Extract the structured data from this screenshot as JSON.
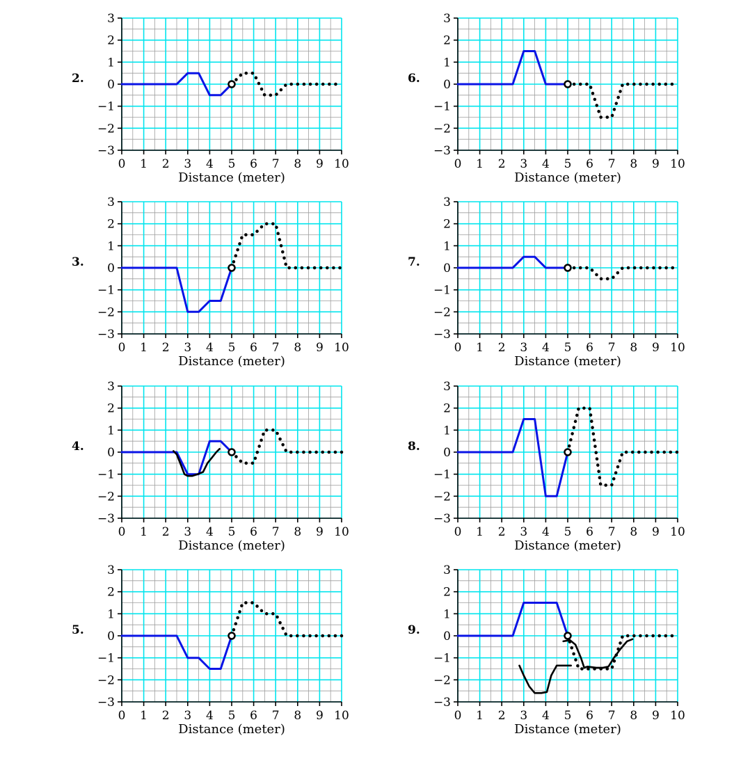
{
  "colors": {
    "grid_minor": "#9e9e9e",
    "grid_major": "#00e5ee",
    "given_wave": "#0a14e6",
    "reflected_wave": "#000000",
    "sketch": "#000000",
    "axis": "#000000"
  },
  "chart_data": [
    {
      "type": "line",
      "label": "2.",
      "xlabel": "Distance (meter)",
      "ylabel": "",
      "xlim": [
        0,
        10
      ],
      "ylim": [
        -3,
        3
      ],
      "xticks": [
        "0",
        "1",
        "2",
        "3",
        "4",
        "5",
        "6",
        "7",
        "8",
        "9",
        "10"
      ],
      "yticks": [
        "−3",
        "−2",
        "−1",
        "0",
        "1",
        "2",
        "3"
      ],
      "grid": true,
      "series": [
        {
          "style": "solid",
          "x": [
            0,
            2.5,
            3,
            3.5,
            4,
            4.5,
            5
          ],
          "y": [
            0,
            0,
            0.5,
            0.5,
            -0.5,
            -0.5,
            0
          ]
        },
        {
          "style": "dotted",
          "x": [
            5,
            5.5,
            6,
            6.5,
            7,
            7.5,
            10
          ],
          "y": [
            0,
            0.5,
            0.5,
            -0.5,
            -0.5,
            0,
            0
          ]
        }
      ],
      "marker": {
        "x": 5,
        "y": 0
      }
    },
    {
      "type": "line",
      "label": "6.",
      "xlabel": "Distance (meter)",
      "ylabel": "",
      "xlim": [
        0,
        10
      ],
      "ylim": [
        -3,
        3
      ],
      "xticks": [
        "0",
        "1",
        "2",
        "3",
        "4",
        "5",
        "6",
        "7",
        "8",
        "9",
        "10"
      ],
      "yticks": [
        "−3",
        "−2",
        "−1",
        "0",
        "1",
        "2",
        "3"
      ],
      "grid": true,
      "series": [
        {
          "style": "solid",
          "x": [
            0,
            2.5,
            3,
            3.5,
            4,
            5
          ],
          "y": [
            0,
            0,
            1.5,
            1.5,
            0,
            0
          ]
        },
        {
          "style": "dotted",
          "x": [
            5,
            6,
            6.5,
            7,
            7.5,
            10
          ],
          "y": [
            0,
            0,
            -1.5,
            -1.5,
            0,
            0
          ]
        }
      ],
      "marker": {
        "x": 5,
        "y": 0
      }
    },
    {
      "type": "line",
      "label": "3.",
      "xlabel": "Distance (meter)",
      "ylabel": "",
      "xlim": [
        0,
        10
      ],
      "ylim": [
        -3,
        3
      ],
      "xticks": [
        "0",
        "1",
        "2",
        "3",
        "4",
        "5",
        "6",
        "7",
        "8",
        "9",
        "10"
      ],
      "yticks": [
        "−3",
        "−2",
        "−1",
        "0",
        "1",
        "2",
        "3"
      ],
      "grid": true,
      "series": [
        {
          "style": "solid",
          "x": [
            0,
            2.5,
            3,
            3.5,
            4,
            4.5,
            5
          ],
          "y": [
            0,
            0,
            -2,
            -2,
            -1.5,
            -1.5,
            0
          ]
        },
        {
          "style": "dotted",
          "x": [
            5,
            5.5,
            6,
            6.5,
            7,
            7.5,
            10
          ],
          "y": [
            0,
            1.5,
            1.5,
            2,
            2,
            0,
            0
          ]
        }
      ],
      "marker": {
        "x": 5,
        "y": 0
      }
    },
    {
      "type": "line",
      "label": "7.",
      "xlabel": "Distance (meter)",
      "ylabel": "",
      "xlim": [
        0,
        10
      ],
      "ylim": [
        -3,
        3
      ],
      "xticks": [
        "0",
        "1",
        "2",
        "3",
        "4",
        "5",
        "6",
        "7",
        "8",
        "9",
        "10"
      ],
      "yticks": [
        "−3",
        "−2",
        "−1",
        "0",
        "1",
        "2",
        "3"
      ],
      "grid": true,
      "series": [
        {
          "style": "solid",
          "x": [
            0,
            2.5,
            3,
            3.5,
            4,
            5
          ],
          "y": [
            0,
            0,
            0.5,
            0.5,
            0,
            0
          ]
        },
        {
          "style": "dotted",
          "x": [
            5,
            6,
            6.5,
            7,
            7.5,
            10
          ],
          "y": [
            0,
            0,
            -0.5,
            -0.5,
            0,
            0
          ]
        }
      ],
      "marker": {
        "x": 5,
        "y": 0
      }
    },
    {
      "type": "line",
      "label": "4.",
      "xlabel": "Distance (meter)",
      "ylabel": "",
      "xlim": [
        0,
        10
      ],
      "ylim": [
        -3,
        3
      ],
      "xticks": [
        "0",
        "1",
        "2",
        "3",
        "4",
        "5",
        "6",
        "7",
        "8",
        "9",
        "10"
      ],
      "yticks": [
        "−3",
        "−2",
        "−1",
        "0",
        "1",
        "2",
        "3"
      ],
      "grid": true,
      "series": [
        {
          "style": "solid",
          "x": [
            0,
            2.5,
            3,
            3.5,
            4,
            4.5,
            5
          ],
          "y": [
            0,
            0,
            -1,
            -1,
            0.5,
            0.5,
            0
          ]
        },
        {
          "style": "dotted",
          "x": [
            5,
            5.5,
            6,
            6.5,
            7,
            7.5,
            10
          ],
          "y": [
            0,
            -0.5,
            -0.5,
            1,
            1,
            0,
            0
          ]
        },
        {
          "style": "sketch",
          "x": [
            2.35,
            2.5,
            2.7,
            2.85,
            3.0,
            3.2,
            3.45,
            3.7,
            3.9,
            4.1,
            4.3,
            4.45
          ],
          "y": [
            0.05,
            -0.1,
            -0.6,
            -1.0,
            -1.08,
            -1.08,
            -1.0,
            -0.9,
            -0.5,
            -0.25,
            0.0,
            0.15
          ]
        }
      ],
      "marker": {
        "x": 5,
        "y": 0
      }
    },
    {
      "type": "line",
      "label": "8.",
      "xlabel": "Distance (meter)",
      "ylabel": "",
      "xlim": [
        0,
        10
      ],
      "ylim": [
        -3,
        3
      ],
      "xticks": [
        "0",
        "1",
        "2",
        "3",
        "4",
        "5",
        "6",
        "7",
        "8",
        "9",
        "10"
      ],
      "yticks": [
        "−3",
        "−2",
        "−1",
        "0",
        "1",
        "2",
        "3"
      ],
      "grid": true,
      "series": [
        {
          "style": "solid",
          "x": [
            0,
            2.5,
            3,
            3.5,
            4,
            4.5,
            5
          ],
          "y": [
            0,
            0,
            1.5,
            1.5,
            -2,
            -2,
            0
          ]
        },
        {
          "style": "dotted",
          "x": [
            5,
            5.5,
            6,
            6.5,
            7,
            7.5,
            10
          ],
          "y": [
            0,
            2,
            2,
            -1.5,
            -1.5,
            0,
            0
          ]
        }
      ],
      "marker": {
        "x": 5,
        "y": 0
      }
    },
    {
      "type": "line",
      "label": "5.",
      "xlabel": "Distance (meter)",
      "ylabel": "",
      "xlim": [
        0,
        10
      ],
      "ylim": [
        -3,
        3
      ],
      "xticks": [
        "0",
        "1",
        "2",
        "3",
        "4",
        "5",
        "6",
        "7",
        "8",
        "9",
        "10"
      ],
      "yticks": [
        "−3",
        "−2",
        "−1",
        "0",
        "1",
        "2",
        "3"
      ],
      "grid": true,
      "series": [
        {
          "style": "solid",
          "x": [
            0,
            2.5,
            3,
            3.5,
            4,
            4.5,
            5
          ],
          "y": [
            0,
            0,
            -1,
            -1,
            -1.5,
            -1.5,
            0
          ]
        },
        {
          "style": "dotted",
          "x": [
            5,
            5.5,
            6,
            6.5,
            7,
            7.5,
            10
          ],
          "y": [
            0,
            1.5,
            1.5,
            1,
            1,
            0,
            0
          ]
        }
      ],
      "marker": {
        "x": 5,
        "y": 0
      }
    },
    {
      "type": "line",
      "label": "9.",
      "xlabel": "Distance (meter)",
      "ylabel": "",
      "xlim": [
        0,
        10
      ],
      "ylim": [
        -3,
        3
      ],
      "xticks": [
        "0",
        "1",
        "2",
        "3",
        "4",
        "5",
        "6",
        "7",
        "8",
        "9",
        "10"
      ],
      "yticks": [
        "−3",
        "−2",
        "−1",
        "0",
        "1",
        "2",
        "3"
      ],
      "grid": true,
      "series": [
        {
          "style": "solid",
          "x": [
            0,
            2.5,
            3,
            4.5,
            5
          ],
          "y": [
            0,
            0,
            1.5,
            1.5,
            0
          ]
        },
        {
          "style": "dotted",
          "x": [
            5,
            5.5,
            6,
            6.5,
            7,
            7.5,
            10
          ],
          "y": [
            0,
            -1.5,
            -1.5,
            -1.5,
            -1.5,
            0,
            0
          ]
        },
        {
          "style": "sketch",
          "x": [
            2.8,
            3.0,
            3.25,
            3.5,
            3.8,
            4.05,
            4.25,
            4.5,
            4.8,
            5.15
          ],
          "y": [
            -1.35,
            -1.8,
            -2.3,
            -2.6,
            -2.6,
            -2.55,
            -1.8,
            -1.35,
            -1.35,
            -1.35
          ]
        },
        {
          "style": "sketch",
          "x": [
            4.8,
            5.1,
            5.35,
            5.6,
            5.75,
            5.9,
            6.3,
            6.6,
            6.85,
            7.1,
            7.4,
            7.7,
            7.95
          ],
          "y": [
            -0.25,
            -0.2,
            -0.4,
            -1.0,
            -1.45,
            -1.4,
            -1.45,
            -1.45,
            -1.4,
            -1.0,
            -0.6,
            -0.25,
            -0.15
          ]
        }
      ],
      "marker": {
        "x": 5,
        "y": 0
      }
    }
  ]
}
